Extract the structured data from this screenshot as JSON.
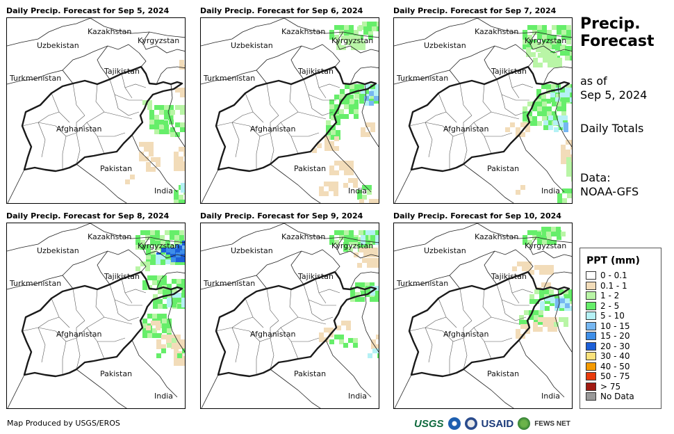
{
  "panels": [
    {
      "title": "Daily Precip. Forecast for Sep 5, 2024"
    },
    {
      "title": "Daily Precip. Forecast for Sep 6, 2024"
    },
    {
      "title": "Daily Precip. Forecast for Sep 7, 2024"
    },
    {
      "title": "Daily Precip. Forecast for Sep 8, 2024"
    },
    {
      "title": "Daily Precip. Forecast for Sep 9, 2024"
    },
    {
      "title": "Daily Precip. Forecast for Sep 10, 2024"
    }
  ],
  "country_labels": {
    "kazakhstan": "Kazakhstan",
    "kyrgyzstan": "Kyrgyzstan",
    "uzbekistan": "Uzbekistan",
    "tajikistan": "Tajikistan",
    "turkmenistan": "Turkmenistan",
    "afghanistan": "Afghanistan",
    "pakistan": "Pakistan",
    "india": "India"
  },
  "side": {
    "title": "Precip.\nForecast",
    "as_of": "as of\nSep 5, 2024",
    "totals": "Daily Totals",
    "source": "Data:\nNOAA-GFS"
  },
  "legend": {
    "title": "PPT (mm)",
    "items": [
      {
        "label": "0 - 0.1",
        "color": "#ffffff"
      },
      {
        "label": "0.1 - 1",
        "color": "#f2dcb9"
      },
      {
        "label": "1 - 2",
        "color": "#b9f5a6"
      },
      {
        "label": "2 - 5",
        "color": "#66ee6a"
      },
      {
        "label": "5 - 10",
        "color": "#b5f1f5"
      },
      {
        "label": "10 - 15",
        "color": "#76b7f2"
      },
      {
        "label": "15 - 20",
        "color": "#3e8ee8"
      },
      {
        "label": "20 - 30",
        "color": "#1c5fd8"
      },
      {
        "label": "30 - 40",
        "color": "#fbe27a"
      },
      {
        "label": "40 - 50",
        "color": "#f59a00"
      },
      {
        "label": "50 - 75",
        "color": "#e93a0c"
      },
      {
        "label": "> 75",
        "color": "#a11a12"
      },
      {
        "label": "No Data",
        "color": "#999999"
      }
    ]
  },
  "footer": {
    "produced_by": "Map Produced by USGS/EROS",
    "logos": {
      "usgs": "USGS",
      "usaid": "USAID",
      "fews": "FEWS NET"
    }
  }
}
